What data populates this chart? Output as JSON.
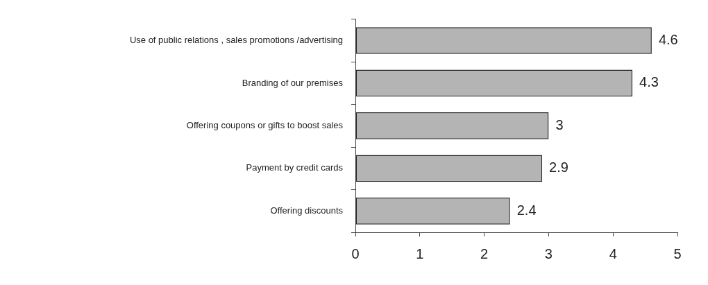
{
  "chart_data": {
    "type": "bar",
    "orientation": "horizontal",
    "categories": [
      "Use of public relations , sales promotions /advertising",
      "Branding of our premises",
      "Offering coupons or gifts to boost sales",
      "Payment by credit cards",
      "Offering discounts"
    ],
    "values": [
      4.6,
      4.3,
      3,
      2.9,
      2.4
    ],
    "color": "#b4b4b4",
    "xlim": [
      0,
      5
    ],
    "xticks": [
      0,
      1,
      2,
      3,
      4,
      5
    ],
    "data_labels": true,
    "grid": false,
    "legend": false
  }
}
